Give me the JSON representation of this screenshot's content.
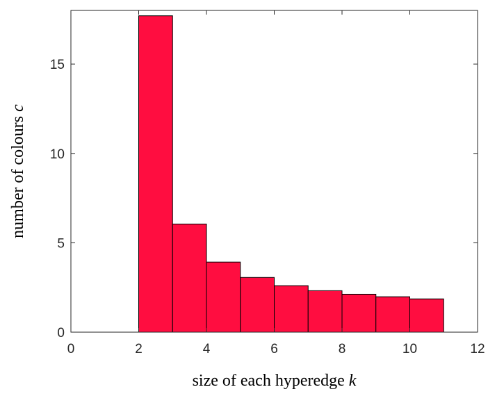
{
  "chart_data": {
    "type": "bar",
    "bin_edges": [
      2,
      3,
      4,
      5,
      6,
      7,
      8,
      9,
      10,
      11
    ],
    "values": [
      17.7,
      6.05,
      3.92,
      3.06,
      2.6,
      2.32,
      2.12,
      1.98,
      1.86
    ],
    "xlabel": "size of each hyperedge",
    "xlabel_var": "k",
    "ylabel": "number of colours",
    "ylabel_var": "c",
    "xlim": [
      0,
      12
    ],
    "ylim": [
      0,
      18
    ],
    "xticks": [
      0,
      2,
      4,
      6,
      8,
      10,
      12
    ],
    "yticks": [
      0,
      5,
      10,
      15
    ],
    "grid": false,
    "bar_color": "#FF0D40",
    "edge_color": "#000000"
  }
}
